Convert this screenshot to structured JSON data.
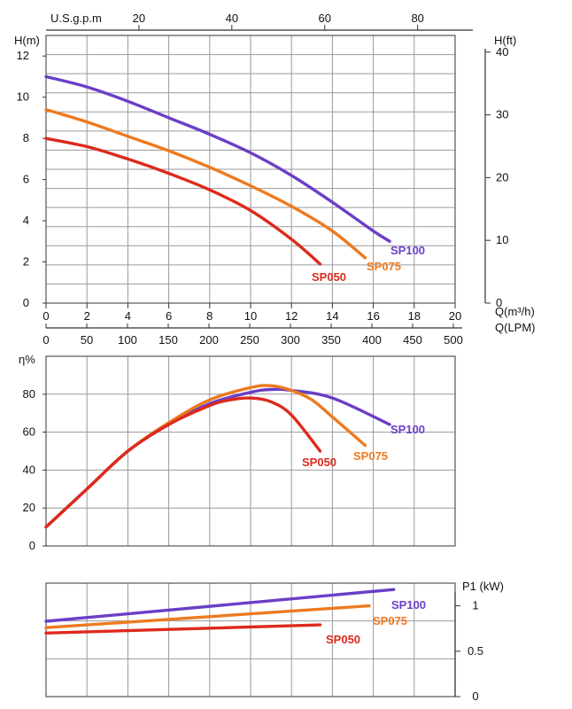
{
  "chart_data": [
    {
      "type": "line",
      "panel": "head",
      "ylabel": "H(m)",
      "ylabel_right": "H(ft)",
      "xlabel": "Q(m³/h)",
      "xlabel2": "Q(LPM)",
      "xlabel_top": "U.S.g.p.m",
      "xlim": [
        0,
        20
      ],
      "ylim": [
        0,
        13
      ],
      "grid": true,
      "x_ticks": [
        "0",
        "2",
        "4",
        "6",
        "8",
        "10",
        "12",
        "14",
        "16",
        "18",
        "20"
      ],
      "y_ticks": [
        "0",
        "2",
        "4",
        "6",
        "8",
        "10",
        "12"
      ],
      "lpm_ticks": [
        "0",
        "50",
        "100",
        "150",
        "200",
        "250",
        "300",
        "350",
        "400",
        "450",
        "500"
      ],
      "gpm_ticks": [
        "20",
        "40",
        "60",
        "80"
      ],
      "ft_ticks": [
        "0",
        "10",
        "20",
        "30",
        "40"
      ],
      "series": [
        {
          "name": "SP100",
          "color": "#6a3fc7",
          "x": [
            0,
            2,
            4,
            6,
            8,
            10,
            12,
            14,
            16,
            16.8
          ],
          "y": [
            11.0,
            10.5,
            9.8,
            9.0,
            8.2,
            7.3,
            6.2,
            4.9,
            3.5,
            3.0
          ]
        },
        {
          "name": "SP075",
          "color": "#ee7a1f",
          "x": [
            0,
            2,
            4,
            6,
            8,
            10,
            12,
            14,
            15.6
          ],
          "y": [
            9.4,
            8.8,
            8.1,
            7.4,
            6.6,
            5.7,
            4.7,
            3.5,
            2.2
          ]
        },
        {
          "name": "SP050",
          "color": "#dd2a1c",
          "x": [
            0,
            2,
            4,
            6,
            8,
            10,
            12,
            13.4
          ],
          "y": [
            8.0,
            7.6,
            7.0,
            6.3,
            5.5,
            4.5,
            3.1,
            1.9
          ]
        }
      ]
    },
    {
      "type": "line",
      "panel": "efficiency",
      "ylabel": "η%",
      "xlim": [
        0,
        20
      ],
      "ylim": [
        0,
        100
      ],
      "grid": true,
      "y_ticks": [
        "0",
        "20",
        "40",
        "60",
        "80"
      ],
      "series": [
        {
          "name": "SP100",
          "color": "#6a3fc7",
          "x": [
            0,
            2,
            4,
            6,
            8,
            10,
            11,
            12,
            14,
            16.8
          ],
          "y": [
            10,
            30,
            50,
            64,
            75,
            81,
            82.5,
            82,
            78,
            64
          ]
        },
        {
          "name": "SP075",
          "color": "#ee7a1f",
          "x": [
            0,
            2,
            4,
            6,
            8,
            10,
            11,
            12,
            13,
            14,
            15.6
          ],
          "y": [
            10,
            30,
            50,
            65,
            77,
            83.5,
            84.5,
            82,
            77,
            68,
            53
          ]
        },
        {
          "name": "SP050",
          "color": "#dd2a1c",
          "x": [
            0,
            2,
            4,
            6,
            8,
            9,
            10,
            11,
            12,
            13.4
          ],
          "y": [
            10,
            30,
            50,
            64,
            74,
            77,
            78,
            76,
            69,
            50
          ]
        }
      ]
    },
    {
      "type": "line",
      "panel": "power",
      "ylabel": "P1 (kW)",
      "xlim": [
        0,
        20
      ],
      "ylim": [
        0,
        1.25
      ],
      "grid": true,
      "y_ticks": [
        "0",
        "0.5",
        "1"
      ],
      "series": [
        {
          "name": "SP100",
          "color": "#6a3fc7",
          "x": [
            0,
            17
          ],
          "y": [
            0.83,
            1.18
          ]
        },
        {
          "name": "SP075",
          "color": "#ee7a1f",
          "x": [
            0,
            15.8
          ],
          "y": [
            0.76,
            1.0
          ]
        },
        {
          "name": "SP050",
          "color": "#dd2a1c",
          "x": [
            0,
            13.4
          ],
          "y": [
            0.7,
            0.79
          ]
        }
      ]
    }
  ]
}
